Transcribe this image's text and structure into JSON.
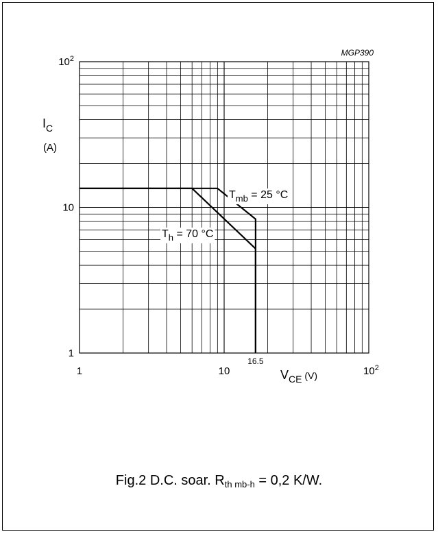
{
  "figure_code": "MGP390",
  "caption": {
    "prefix": "Fig.2  D.C. soar. R",
    "subscript": "th mb-h",
    "suffix": " = 0,2 K/W."
  },
  "chart_data": {
    "type": "line",
    "x_scale": "log",
    "y_scale": "log",
    "xlim": [
      1,
      100
    ],
    "ylim": [
      1,
      100
    ],
    "x_ticks": [
      {
        "value": 1,
        "base": "1",
        "exp": ""
      },
      {
        "value": 10,
        "base": "10",
        "exp": ""
      },
      {
        "value": 100,
        "base": "10",
        "exp": "2"
      }
    ],
    "y_ticks": [
      {
        "value": 1,
        "base": "1",
        "exp": ""
      },
      {
        "value": 10,
        "base": "10",
        "exp": ""
      },
      {
        "value": 100,
        "base": "10",
        "exp": "2"
      }
    ],
    "extra_x_tick": {
      "value": 16.5,
      "label": "16.5"
    },
    "xlabel": {
      "main": "V",
      "sub": "CE",
      "unit": " (V)"
    },
    "ylabel": {
      "main": "I",
      "sub": "C",
      "unit": "(A)"
    },
    "grid": true,
    "series": [
      {
        "name": "Tmb = 25 °C",
        "label_main": "T",
        "label_sub": "mb",
        "label_rest": " = 25 °C",
        "points": [
          [
            1,
            13.5
          ],
          [
            9,
            13.5
          ],
          [
            16.5,
            8.3
          ],
          [
            16.5,
            1
          ]
        ]
      },
      {
        "name": "Th = 70 °C",
        "label_main": "T",
        "label_sub": "h",
        "label_rest": " = 70 °C",
        "points": [
          [
            1,
            13.5
          ],
          [
            6,
            13.5
          ],
          [
            16.5,
            5.2
          ],
          [
            16.5,
            1
          ]
        ]
      }
    ]
  }
}
